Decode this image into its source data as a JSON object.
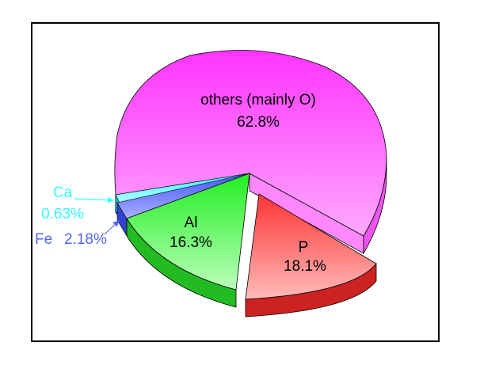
{
  "chart_data": {
    "type": "pie",
    "title": "",
    "legend": "none",
    "slices": [
      {
        "label": "others (mainly O)",
        "value": "62.8%",
        "percent": 62.8,
        "color": "#ff44ff",
        "exploded": false
      },
      {
        "label": "P",
        "value": "18.1%",
        "percent": 18.1,
        "color": "#ff5555",
        "exploded": true
      },
      {
        "label": "Al",
        "value": "16.3%",
        "percent": 16.3,
        "color": "#33ee33",
        "exploded": false
      },
      {
        "label": "Fe",
        "value": "2.18%",
        "percent": 2.18,
        "color": "#6677ff",
        "exploded": false
      },
      {
        "label": "Ca",
        "value": "0.63%",
        "percent": 0.63,
        "color": "#33ffff",
        "exploded": false
      }
    ]
  }
}
